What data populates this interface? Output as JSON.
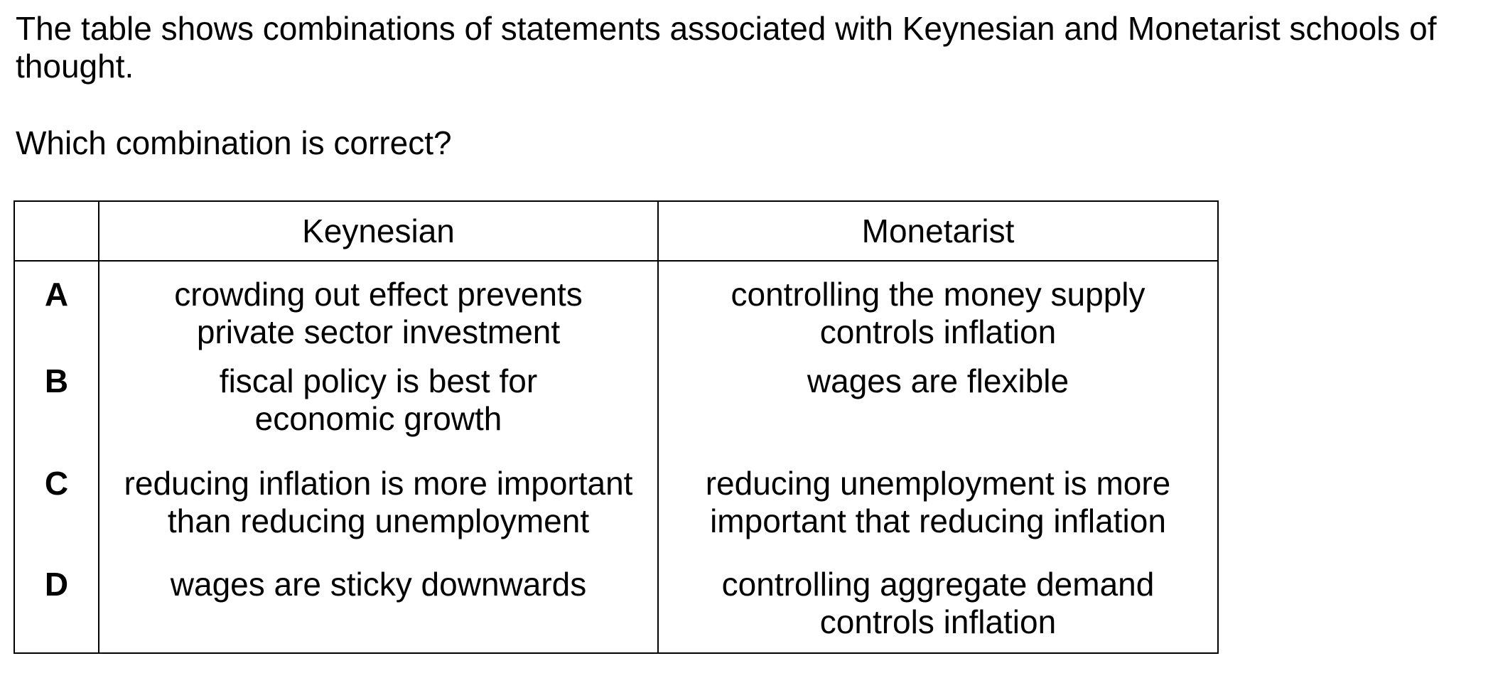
{
  "intro_text": "The table shows combinations of statements associated with Keynesian and Monetarist schools of thought.",
  "question_text": "Which combination is correct?",
  "table": {
    "headers": [
      "",
      "Keynesian",
      "Monetarist"
    ],
    "rows": [
      {
        "letter": "A",
        "keynesian": [
          "crowding out effect prevents",
          "private sector investment"
        ],
        "monetarist": [
          "controlling the money supply",
          "controls inflation"
        ]
      },
      {
        "letter": "B",
        "keynesian": [
          "fiscal policy is best for",
          "economic growth"
        ],
        "monetarist": [
          "wages are flexible"
        ]
      },
      {
        "letter": "C",
        "keynesian": [
          "reducing inflation is more important",
          "than reducing unemployment"
        ],
        "monetarist": [
          "reducing unemployment is more",
          "important that reducing inflation"
        ]
      },
      {
        "letter": "D",
        "keynesian": [
          "wages are sticky downwards"
        ],
        "monetarist": [
          "controlling aggregate demand",
          "controls inflation"
        ]
      }
    ]
  }
}
